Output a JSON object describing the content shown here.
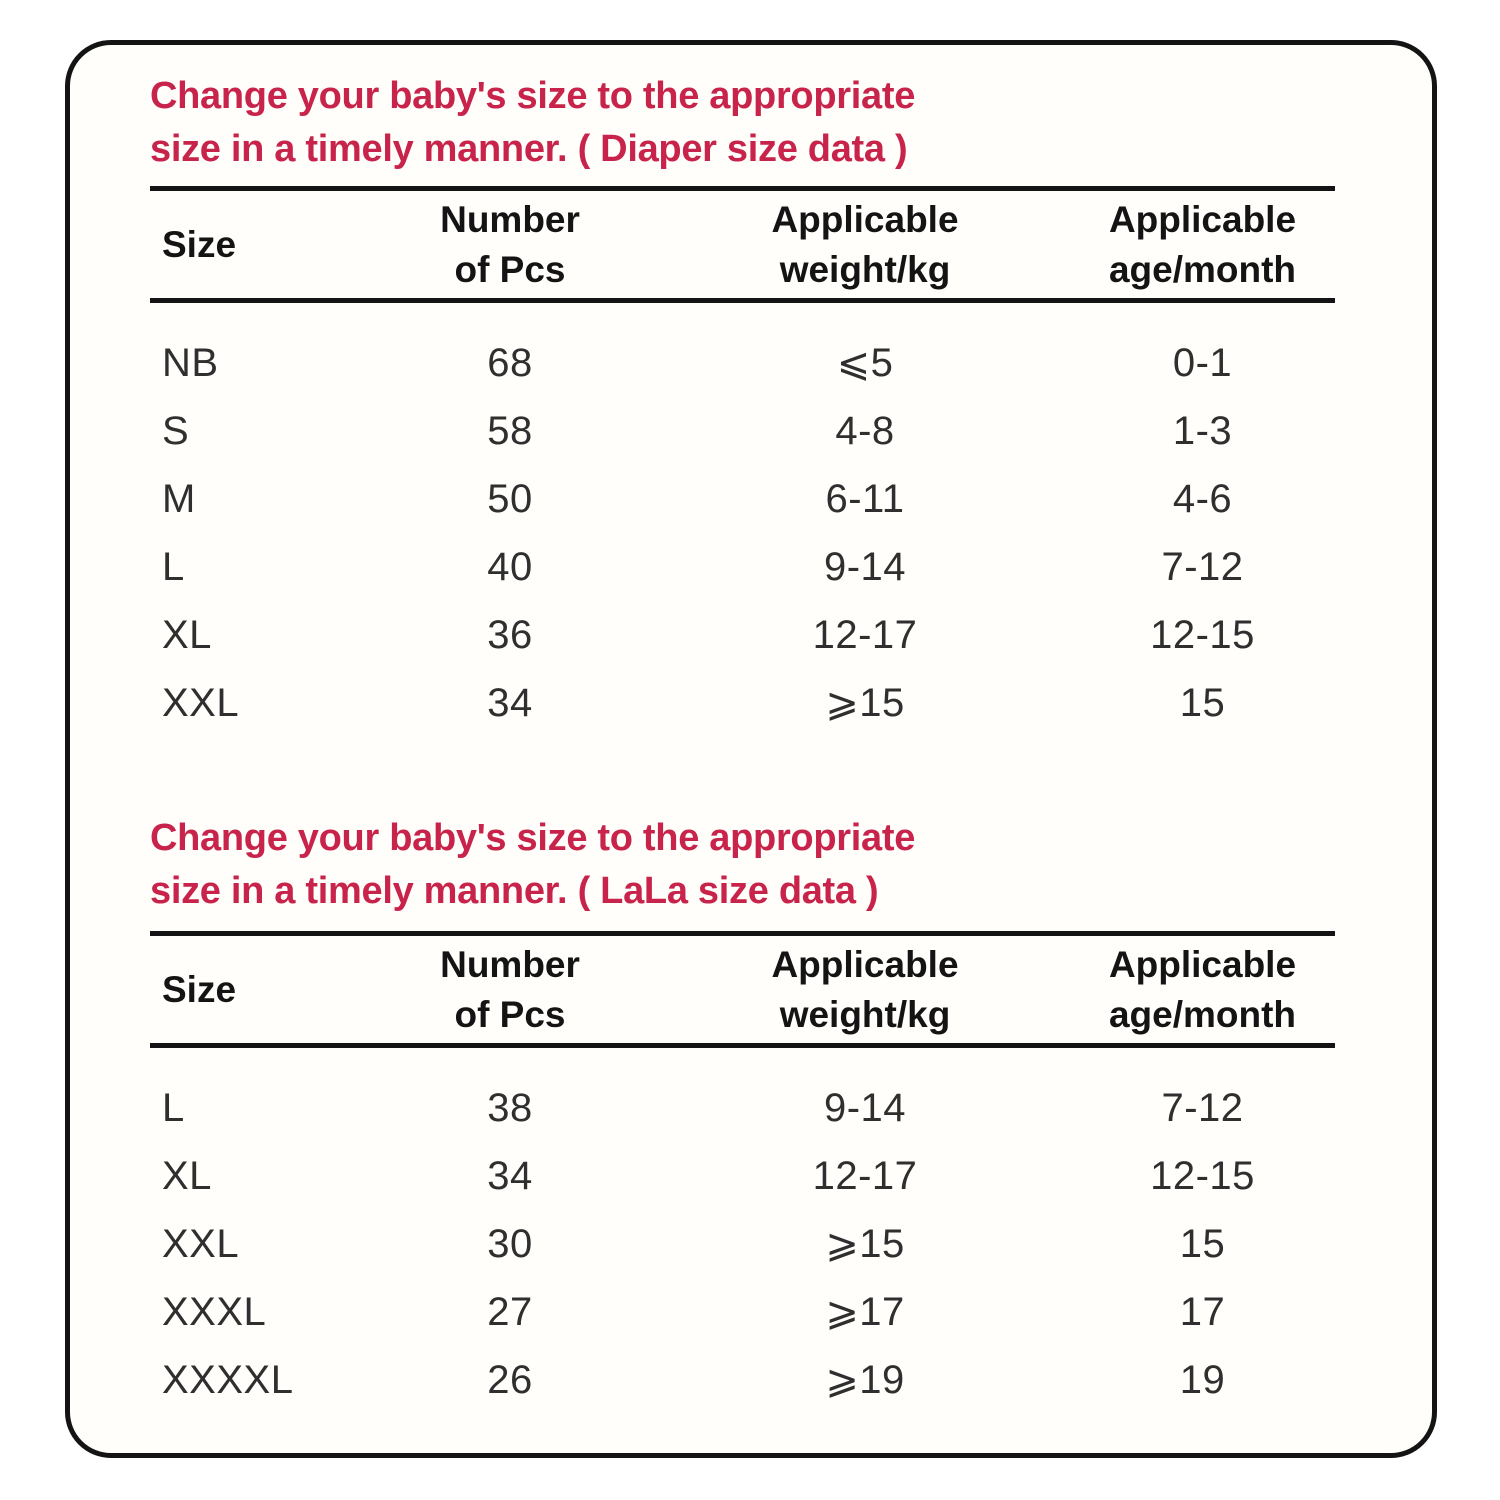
{
  "colors": {
    "accent": "#c8234a",
    "ink": "#141414",
    "body-ink": "#2f2f2f",
    "card-bg": "#fffefb",
    "page-bg": "#ffffff"
  },
  "sections": [
    {
      "heading": "Change your baby's size to the appropriate\nsize in a timely manner. ( Diaper size data )",
      "columns": [
        "Size",
        "Number\nof Pcs",
        "Applicable\nweight/kg",
        "Applicable\nage/month"
      ],
      "rows": [
        [
          "NB",
          "68",
          "⩽5",
          "0-1"
        ],
        [
          "S",
          "58",
          "4-8",
          "1-3"
        ],
        [
          "M",
          "50",
          "6-11",
          "4-6"
        ],
        [
          "L",
          "40",
          "9-14",
          "7-12"
        ],
        [
          "XL",
          "36",
          "12-17",
          "12-15"
        ],
        [
          "XXL",
          "34",
          "⩾15",
          "15"
        ]
      ]
    },
    {
      "heading": "Change your baby's size to the appropriate\nsize in a timely manner. ( LaLa size data )",
      "columns": [
        "Size",
        "Number\nof Pcs",
        "Applicable\nweight/kg",
        "Applicable\nage/month"
      ],
      "rows": [
        [
          "L",
          "38",
          "9-14",
          "7-12"
        ],
        [
          "XL",
          "34",
          "12-17",
          "12-15"
        ],
        [
          "XXL",
          "30",
          "⩾15",
          "15"
        ],
        [
          "XXXL",
          "27",
          "⩾17",
          "17"
        ],
        [
          "XXXXL",
          "26",
          "⩾19",
          "19"
        ]
      ]
    }
  ]
}
